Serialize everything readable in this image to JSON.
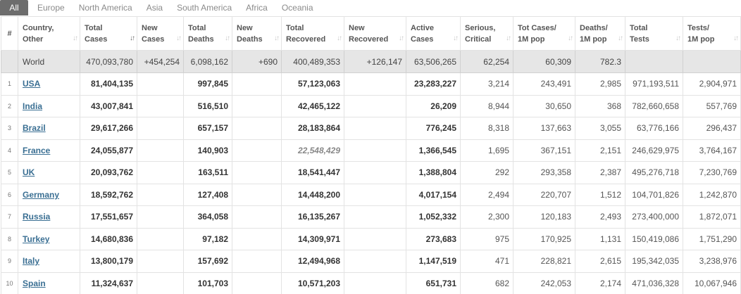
{
  "tabs": [
    "All",
    "Europe",
    "North America",
    "Asia",
    "South America",
    "Africa",
    "Oceania"
  ],
  "active_tab": "All",
  "headers": {
    "num": "#",
    "country": [
      "Country,",
      "Other"
    ],
    "total_cases": [
      "Total",
      "Cases"
    ],
    "new_cases": [
      "New",
      "Cases"
    ],
    "total_deaths": [
      "Total",
      "Deaths"
    ],
    "new_deaths": [
      "New",
      "Deaths"
    ],
    "total_recovered": [
      "Total",
      "Recovered"
    ],
    "new_recovered": [
      "New",
      "Recovered"
    ],
    "active_cases": [
      "Active",
      "Cases"
    ],
    "serious": [
      "Serious,",
      "Critical"
    ],
    "tot_cases_1m": [
      "Tot Cases/",
      "1M pop"
    ],
    "deaths_1m": [
      "Deaths/",
      "1M pop"
    ],
    "total_tests": [
      "Total",
      "Tests"
    ],
    "tests_1m": [
      "Tests/",
      "1M pop"
    ]
  },
  "sort_icon": "sort-arrows-icon",
  "world": {
    "country": "World",
    "total_cases": "470,093,780",
    "new_cases": "+454,254",
    "total_deaths": "6,098,162",
    "new_deaths": "+690",
    "total_recovered": "400,489,353",
    "new_recovered": "+126,147",
    "active_cases": "63,506,265",
    "serious": "62,254",
    "tot_cases_1m": "60,309",
    "deaths_1m": "782.3",
    "total_tests": "",
    "tests_1m": ""
  },
  "rows": [
    {
      "num": "1",
      "country": "USA",
      "total_cases": "81,404,135",
      "new_cases": "",
      "total_deaths": "997,845",
      "new_deaths": "",
      "total_recovered": "57,123,063",
      "new_recovered": "",
      "active_cases": "23,283,227",
      "serious": "3,214",
      "tot_cases_1m": "243,491",
      "deaths_1m": "2,985",
      "total_tests": "971,193,511",
      "tests_1m": "2,904,971"
    },
    {
      "num": "2",
      "country": "India",
      "total_cases": "43,007,841",
      "new_cases": "",
      "total_deaths": "516,510",
      "new_deaths": "",
      "total_recovered": "42,465,122",
      "new_recovered": "",
      "active_cases": "26,209",
      "serious": "8,944",
      "tot_cases_1m": "30,650",
      "deaths_1m": "368",
      "total_tests": "782,660,658",
      "tests_1m": "557,769"
    },
    {
      "num": "3",
      "country": "Brazil",
      "total_cases": "29,617,266",
      "new_cases": "",
      "total_deaths": "657,157",
      "new_deaths": "",
      "total_recovered": "28,183,864",
      "new_recovered": "",
      "active_cases": "776,245",
      "serious": "8,318",
      "tot_cases_1m": "137,663",
      "deaths_1m": "3,055",
      "total_tests": "63,776,166",
      "tests_1m": "296,437"
    },
    {
      "num": "4",
      "country": "France",
      "total_cases": "24,055,877",
      "new_cases": "",
      "total_deaths": "140,903",
      "new_deaths": "",
      "total_recovered": "22,548,429",
      "recovered_italic": true,
      "new_recovered": "",
      "active_cases": "1,366,545",
      "serious": "1,695",
      "tot_cases_1m": "367,151",
      "deaths_1m": "2,151",
      "total_tests": "246,629,975",
      "tests_1m": "3,764,167"
    },
    {
      "num": "5",
      "country": "UK",
      "total_cases": "20,093,762",
      "new_cases": "",
      "total_deaths": "163,511",
      "new_deaths": "",
      "total_recovered": "18,541,447",
      "new_recovered": "",
      "active_cases": "1,388,804",
      "serious": "292",
      "tot_cases_1m": "293,358",
      "deaths_1m": "2,387",
      "total_tests": "495,276,718",
      "tests_1m": "7,230,769"
    },
    {
      "num": "6",
      "country": "Germany",
      "total_cases": "18,592,762",
      "new_cases": "",
      "total_deaths": "127,408",
      "new_deaths": "",
      "total_recovered": "14,448,200",
      "new_recovered": "",
      "active_cases": "4,017,154",
      "serious": "2,494",
      "tot_cases_1m": "220,707",
      "deaths_1m": "1,512",
      "total_tests": "104,701,826",
      "tests_1m": "1,242,870"
    },
    {
      "num": "7",
      "country": "Russia",
      "total_cases": "17,551,657",
      "new_cases": "",
      "total_deaths": "364,058",
      "new_deaths": "",
      "total_recovered": "16,135,267",
      "new_recovered": "",
      "active_cases": "1,052,332",
      "serious": "2,300",
      "tot_cases_1m": "120,183",
      "deaths_1m": "2,493",
      "total_tests": "273,400,000",
      "tests_1m": "1,872,071"
    },
    {
      "num": "8",
      "country": "Turkey",
      "total_cases": "14,680,836",
      "new_cases": "",
      "total_deaths": "97,182",
      "new_deaths": "",
      "total_recovered": "14,309,971",
      "new_recovered": "",
      "active_cases": "273,683",
      "serious": "975",
      "tot_cases_1m": "170,925",
      "deaths_1m": "1,131",
      "total_tests": "150,419,086",
      "tests_1m": "1,751,290"
    },
    {
      "num": "9",
      "country": "Italy",
      "total_cases": "13,800,179",
      "new_cases": "",
      "total_deaths": "157,692",
      "new_deaths": "",
      "total_recovered": "12,494,968",
      "new_recovered": "",
      "active_cases": "1,147,519",
      "serious": "471",
      "tot_cases_1m": "228,821",
      "deaths_1m": "2,615",
      "total_tests": "195,342,035",
      "tests_1m": "3,238,976"
    },
    {
      "num": "10",
      "country": "Spain",
      "total_cases": "11,324,637",
      "new_cases": "",
      "total_deaths": "101,703",
      "new_deaths": "",
      "total_recovered": "10,571,203",
      "new_recovered": "",
      "active_cases": "651,731",
      "serious": "682",
      "tot_cases_1m": "242,053",
      "deaths_1m": "2,174",
      "total_tests": "471,036,328",
      "tests_1m": "10,067,946"
    }
  ]
}
